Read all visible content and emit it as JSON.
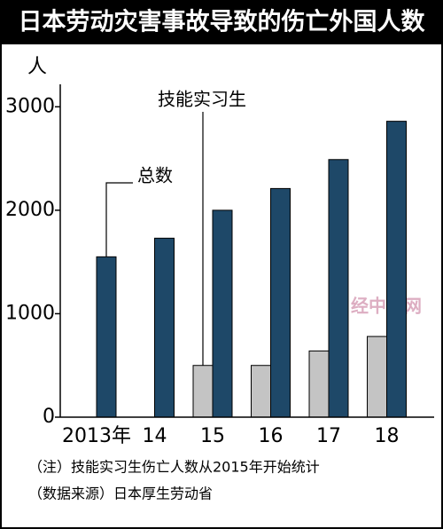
{
  "chart_data": {
    "type": "bar",
    "title": "日本劳动灾害事故导致的伤亡外国人数",
    "y_label": "人",
    "categories": [
      "2013年",
      "14",
      "15",
      "16",
      "17",
      "18"
    ],
    "series": [
      {
        "name": "技能实习生",
        "color": "#c4c4c4",
        "values": [
          null,
          null,
          500,
          500,
          640,
          780
        ]
      },
      {
        "name": "总数",
        "color": "#1e4868",
        "values": [
          1550,
          1730,
          2000,
          2210,
          2490,
          2860
        ]
      }
    ],
    "ylim": [
      0,
      3200
    ],
    "yticks": [
      0,
      1000,
      2000,
      3000
    ],
    "notes": [
      "（注）技能实习生伤亡人数从2015年开始统计",
      "（数据来源）日本厚生劳动省"
    ],
    "watermark": "日经中文网"
  }
}
